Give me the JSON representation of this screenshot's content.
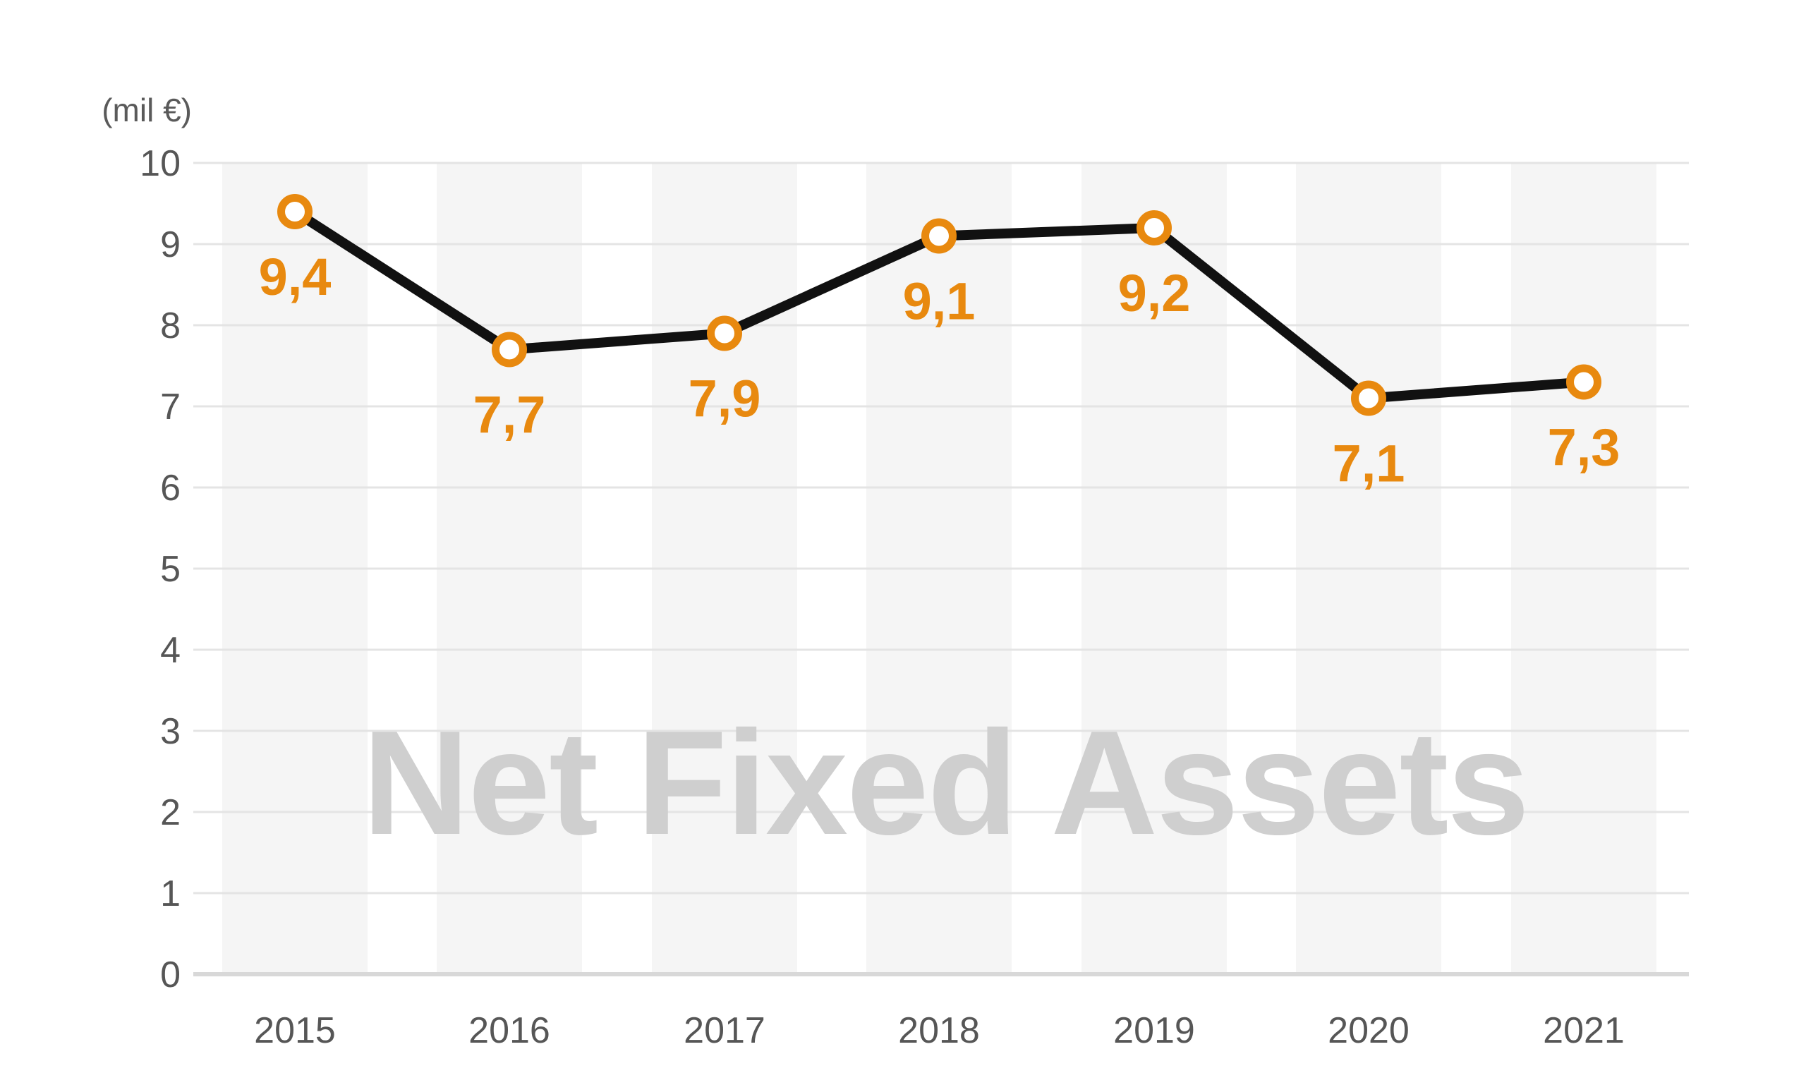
{
  "chart_data": {
    "type": "line",
    "title_watermark": "Net Fixed Assets",
    "unit_label": "(mil €)",
    "categories": [
      "2015",
      "2016",
      "2017",
      "2018",
      "2019",
      "2020",
      "2021"
    ],
    "series": [
      {
        "name": "Net Fixed Assets",
        "values": [
          9.4,
          7.7,
          7.9,
          9.1,
          9.2,
          7.1,
          7.3
        ]
      }
    ],
    "data_labels": [
      "9,4",
      "7,7",
      "7,9",
      "9,1",
      "9,2",
      "7,1",
      "7,3"
    ],
    "y_ticks": [
      0,
      1,
      2,
      3,
      4,
      5,
      6,
      7,
      8,
      9,
      10
    ],
    "ylim": [
      0,
      10
    ],
    "grid": "horizontal",
    "legend": "none",
    "marker_style": "open-circle",
    "colors": {
      "accent_orange": "#E8890F",
      "line_black": "#111111",
      "band_gray": "#F5F5F5",
      "gridline_gray": "#E4E4E4",
      "axis_line_gray": "#D8D8D8",
      "tick_text_gray": "#565656",
      "watermark_gray": "#CFCFCF",
      "marker_fill": "#FFFFFF"
    }
  }
}
